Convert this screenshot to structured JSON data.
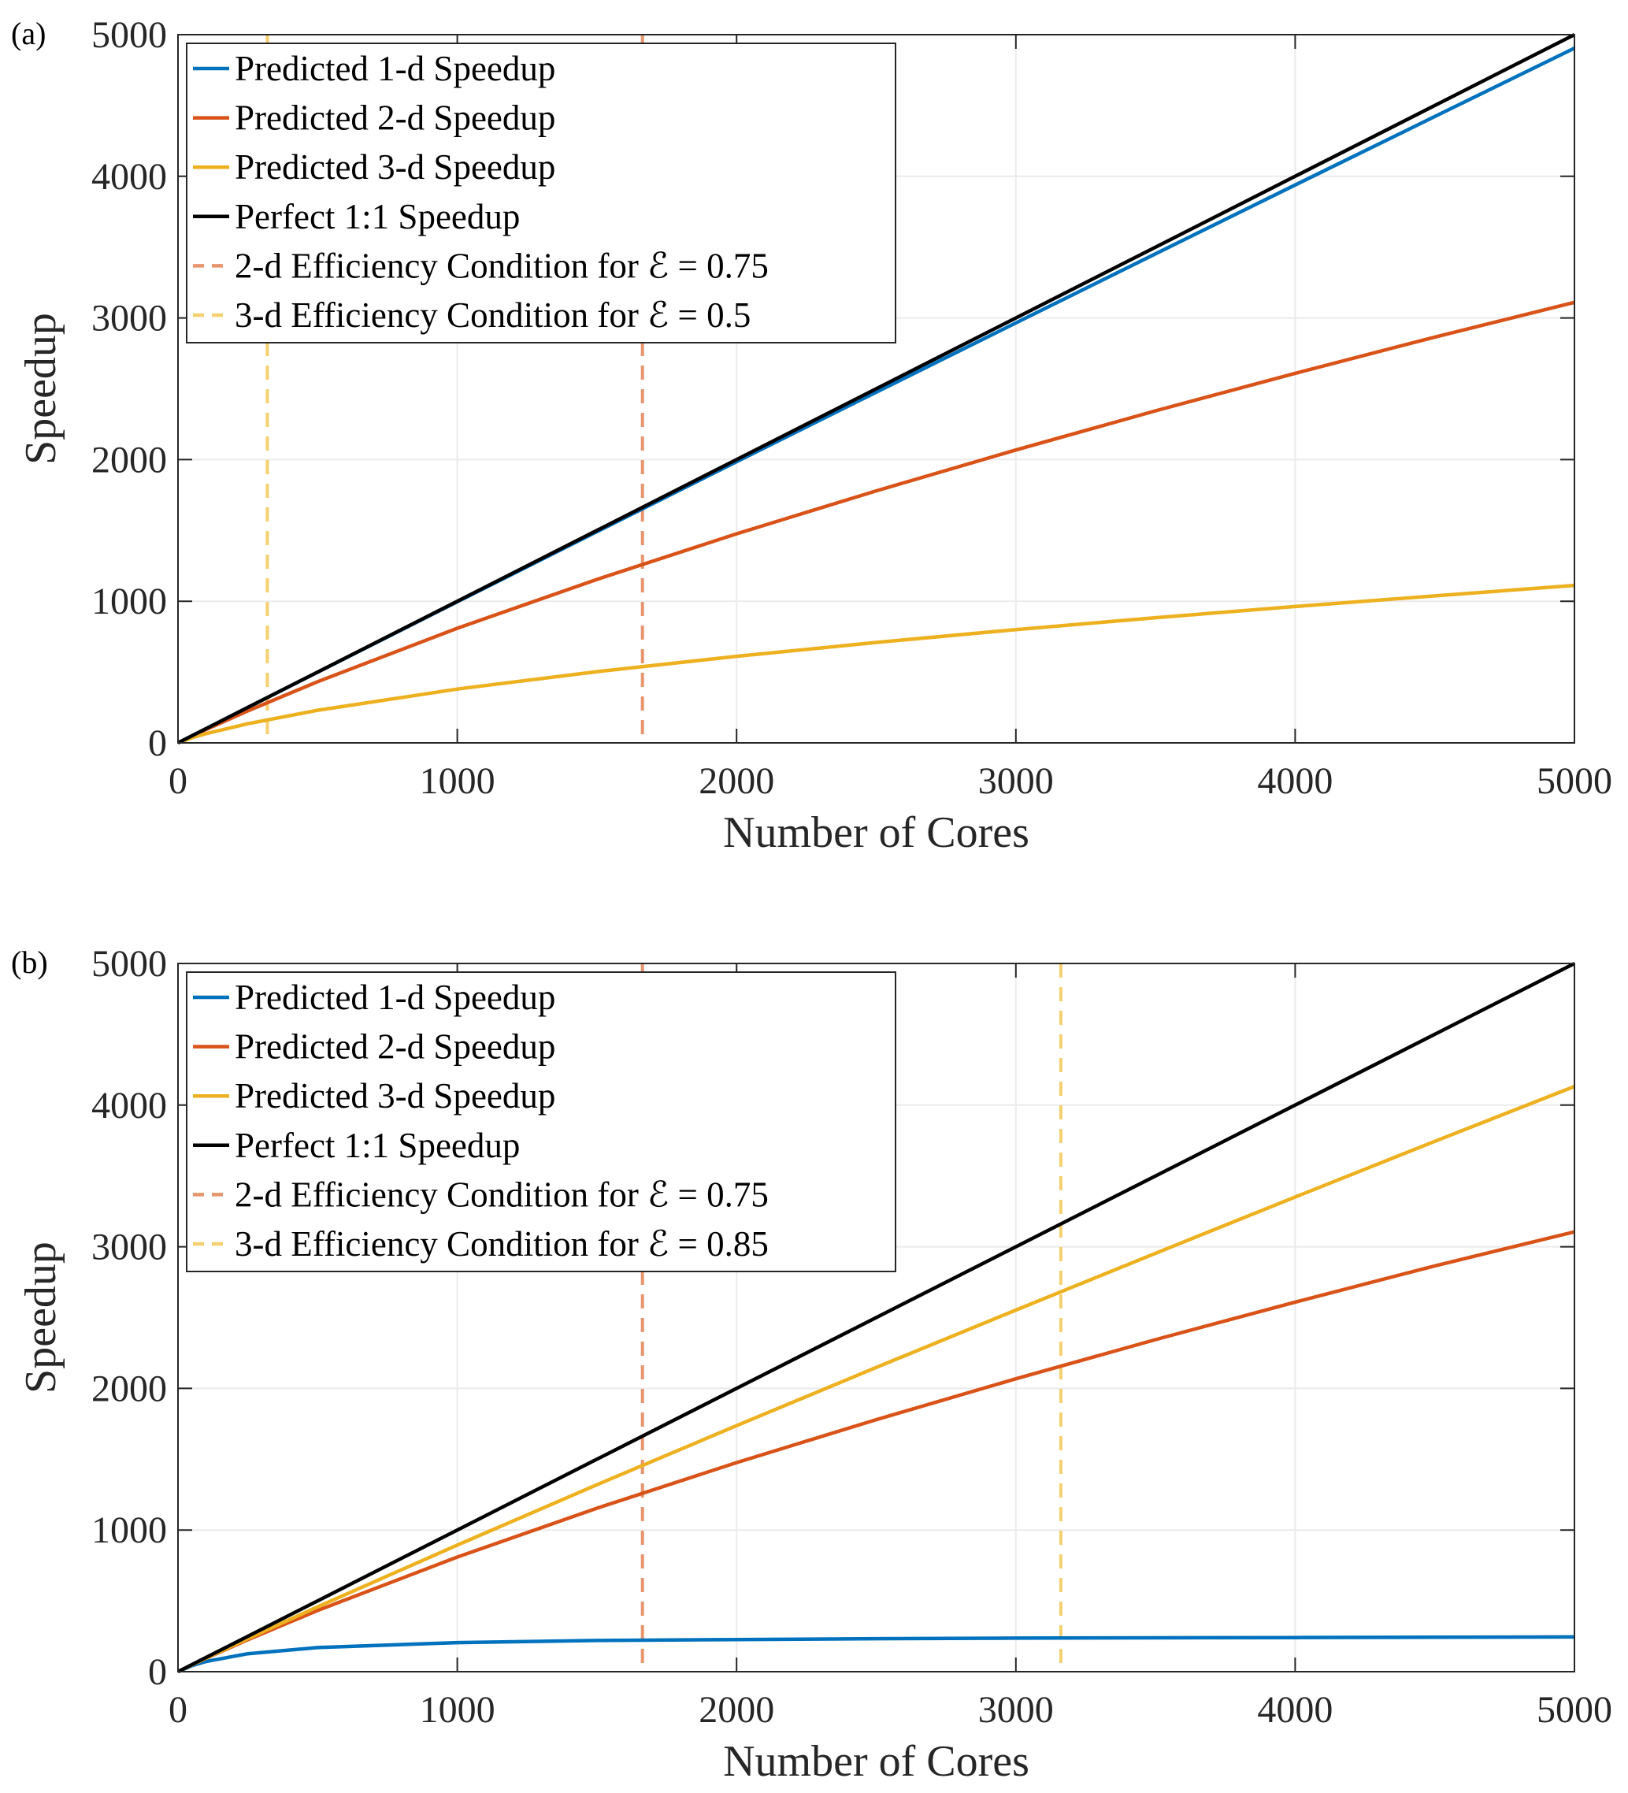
{
  "colors": {
    "blue": "#0072BD",
    "orange": "#D95319",
    "yellow": "#EDB120",
    "black": "#000000",
    "orange_dashed": "#E8956E",
    "yellow_dashed": "#F4D06E"
  },
  "chart_data": [
    {
      "panel_label": "(a)",
      "type": "line",
      "xlabel": "Number of Cores",
      "ylabel": "Speedup",
      "xlim": [
        0,
        5000
      ],
      "ylim": [
        0,
        5000
      ],
      "xticks": [
        "0",
        "1000",
        "2000",
        "3000",
        "4000",
        "5000"
      ],
      "yticks": [
        "0",
        "1000",
        "2000",
        "3000",
        "4000",
        "5000"
      ],
      "grid": true,
      "legend_placement": "top-left",
      "x": [
        0,
        50,
        100,
        250,
        500,
        1000,
        1500,
        2000,
        2500,
        3000,
        3500,
        4000,
        4500,
        5000
      ],
      "series": [
        {
          "name": "Predicted 1-d Speedup",
          "color": "blue",
          "style": "solid",
          "values": [
            0,
            50,
            100,
            250,
            499,
            996,
            1491,
            1985,
            2476,
            2965,
            3453,
            3939,
            4422,
            4905
          ]
        },
        {
          "name": "Predicted 2-d Speedup",
          "color": "orange",
          "style": "solid",
          "values": [
            0,
            48,
            94,
            226,
            432,
            809,
            1154,
            1476,
            1779,
            2068,
            2344,
            2609,
            2865,
            3110
          ]
        },
        {
          "name": "Predicted 3-d Speedup",
          "color": "yellow",
          "style": "solid",
          "values": [
            0,
            36,
            65,
            135,
            230,
            380,
            503,
            611,
            709,
            800,
            884,
            963,
            1038,
            1112
          ]
        },
        {
          "name": "Perfect 1:1 Speedup",
          "color": "black",
          "style": "solid",
          "values": [
            0,
            50,
            100,
            250,
            500,
            1000,
            1500,
            2000,
            2500,
            3000,
            3500,
            4000,
            4500,
            5000
          ]
        }
      ],
      "vlines": [
        {
          "name": "2-d Efficiency Condition for ℰ = 0.75",
          "color": "orange_dashed",
          "x": 1663
        },
        {
          "name": "3-d Efficiency Condition for ℰ = 0.5",
          "color": "yellow_dashed",
          "x": 320
        }
      ]
    },
    {
      "panel_label": "(b)",
      "type": "line",
      "xlabel": "Number of Cores",
      "ylabel": "Speedup",
      "xlim": [
        0,
        5000
      ],
      "ylim": [
        0,
        5000
      ],
      "xticks": [
        "0",
        "1000",
        "2000",
        "3000",
        "4000",
        "5000"
      ],
      "yticks": [
        "0",
        "1000",
        "2000",
        "3000",
        "4000",
        "5000"
      ],
      "grid": true,
      "legend_placement": "top-left",
      "x": [
        0,
        50,
        100,
        250,
        500,
        1000,
        1500,
        2000,
        2500,
        3000,
        3500,
        4000,
        4500,
        5000
      ],
      "series": [
        {
          "name": "Predicted 1-d Speedup",
          "color": "blue",
          "style": "solid",
          "values": [
            0,
            42,
            72,
            127,
            170,
            205,
            220,
            227,
            233,
            237,
            239,
            241,
            243,
            245
          ]
        },
        {
          "name": "Predicted 2-d Speedup",
          "color": "orange",
          "style": "solid",
          "values": [
            0,
            48,
            94,
            226,
            432,
            809,
            1154,
            1476,
            1779,
            2068,
            2344,
            2609,
            2865,
            3105
          ]
        },
        {
          "name": "Predicted 3-d Speedup",
          "color": "yellow",
          "style": "solid",
          "values": [
            0,
            48,
            95,
            233,
            458,
            894,
            1320,
            1737,
            2148,
            2553,
            2954,
            3351,
            3744,
            4132
          ]
        },
        {
          "name": "Perfect 1:1 Speedup",
          "color": "black",
          "style": "solid",
          "values": [
            0,
            50,
            100,
            250,
            500,
            1000,
            1500,
            2000,
            2500,
            3000,
            3500,
            4000,
            4500,
            5000
          ]
        }
      ],
      "vlines": [
        {
          "name": "2-d Efficiency Condition for ℰ = 0.75",
          "color": "orange_dashed",
          "x": 1663
        },
        {
          "name": "3-d Efficiency Condition for ℰ = 0.85",
          "color": "yellow_dashed",
          "x": 3161
        }
      ]
    }
  ]
}
